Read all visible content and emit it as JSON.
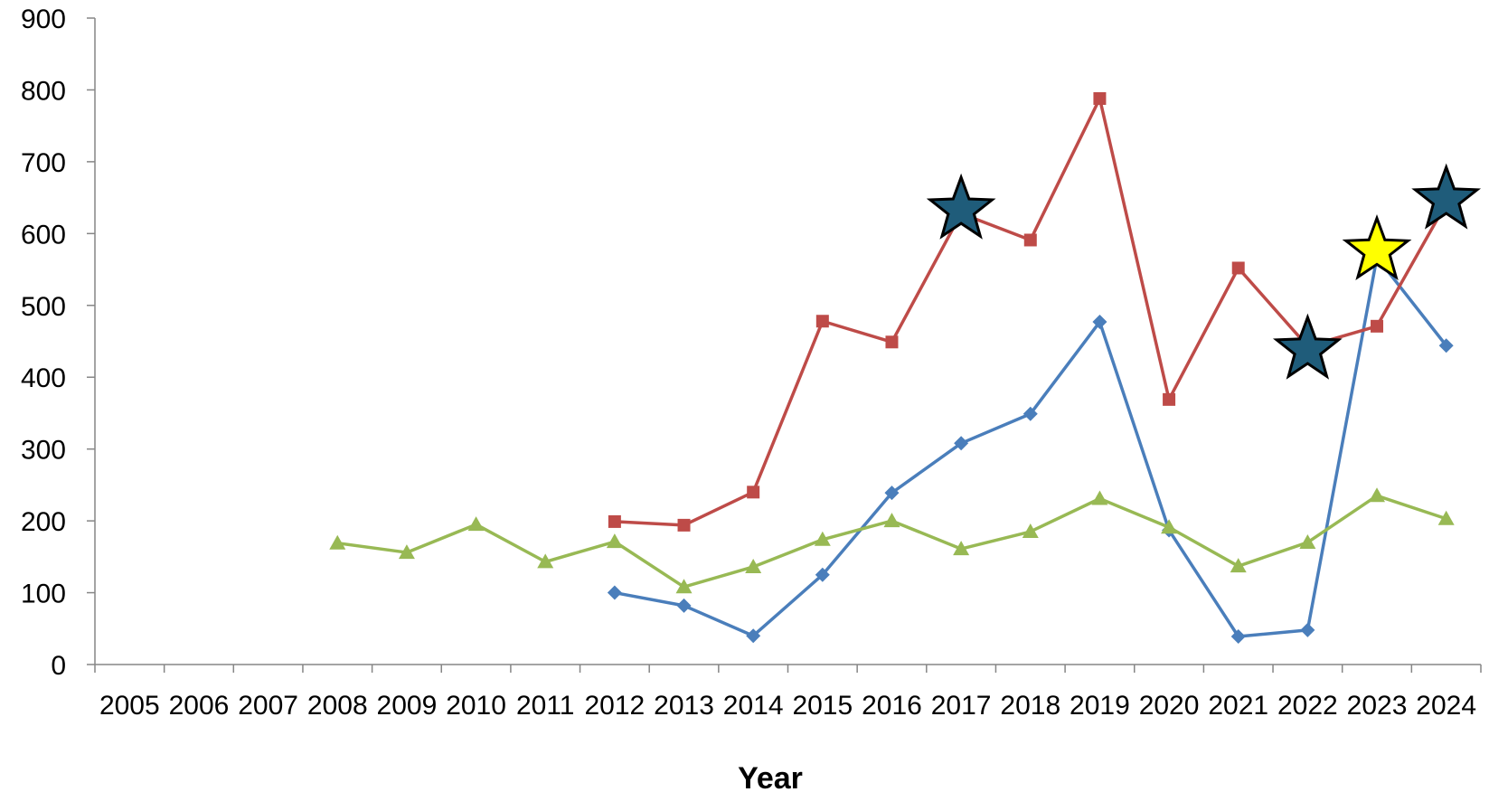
{
  "chart_data": {
    "type": "line",
    "title": "",
    "xlabel": "Year",
    "ylabel": "",
    "ylim": [
      0,
      900
    ],
    "y_ticks": [
      0,
      100,
      200,
      300,
      400,
      500,
      600,
      700,
      800,
      900
    ],
    "grid": false,
    "legend": "none",
    "categories": [
      "2005",
      "2006",
      "2007",
      "2008",
      "2009",
      "2010",
      "2011",
      "2012",
      "2013",
      "2014",
      "2015",
      "2016",
      "2017",
      "2018",
      "2019",
      "2020",
      "2021",
      "2022",
      "2023",
      "2024"
    ],
    "series": [
      {
        "color": "#4a7ebb",
        "marker": "diamond",
        "values": [
          null,
          null,
          null,
          null,
          null,
          null,
          null,
          100,
          82,
          40,
          125,
          239,
          308,
          349,
          477,
          187,
          39,
          48,
          567,
          444
        ]
      },
      {
        "color": "#be4b48",
        "marker": "square",
        "values": [
          null,
          null,
          null,
          null,
          null,
          null,
          null,
          199,
          194,
          240,
          478,
          449,
          628,
          591,
          788,
          369,
          552,
          443,
          471,
          642
        ]
      },
      {
        "color": "#98b954",
        "marker": "triangle",
        "values": [
          null,
          null,
          null,
          169,
          156,
          195,
          143,
          171,
          108,
          136,
          174,
          200,
          161,
          185,
          231,
          191,
          137,
          170,
          235,
          203
        ]
      }
    ],
    "annotations": [
      {
        "type": "star",
        "category": "2017",
        "value": 633,
        "color": "#1f5c7a"
      },
      {
        "type": "star",
        "category": "2022",
        "value": 438,
        "color": "#1f5c7a"
      },
      {
        "type": "star",
        "category": "2023",
        "value": 576,
        "color": "#ffff00"
      },
      {
        "type": "star",
        "category": "2024",
        "value": 647,
        "color": "#1f5c7a"
      }
    ]
  }
}
